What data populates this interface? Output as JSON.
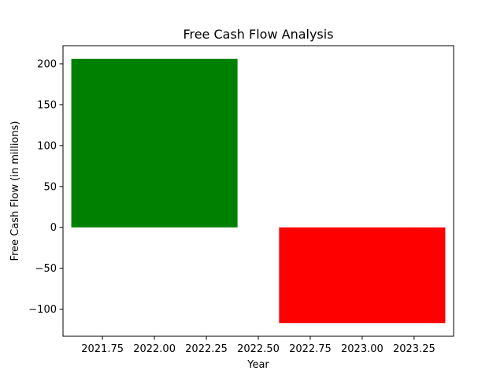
{
  "chart_data": {
    "type": "bar",
    "title": "Free Cash Flow Analysis",
    "xlabel": "Year",
    "ylabel": "Free Cash Flow (in millions)",
    "bar_width": 0.8,
    "series": [
      {
        "bars": [
          {
            "x": 2022,
            "value": 206,
            "color": "#008000"
          },
          {
            "x": 2023,
            "value": -117,
            "color": "#ff0000"
          }
        ]
      }
    ],
    "xlim": [
      2021.56,
      2023.44
    ],
    "ylim": [
      -133.15,
      222.15
    ],
    "x_ticks": [
      2021.75,
      2022.0,
      2022.25,
      2022.5,
      2022.75,
      2023.0,
      2023.25
    ],
    "x_tick_labels": [
      "2021.75",
      "2022.00",
      "2022.25",
      "2022.50",
      "2022.75",
      "2023.00",
      "2023.25"
    ],
    "y_ticks": [
      -100,
      -50,
      0,
      50,
      100,
      150,
      200
    ],
    "y_tick_labels": [
      "−100",
      "−50",
      "0",
      "50",
      "100",
      "150",
      "200"
    ],
    "grid": false,
    "legend": "none"
  }
}
